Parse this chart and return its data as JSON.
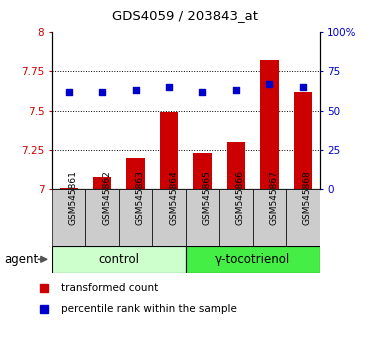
{
  "title": "GDS4059 / 203843_at",
  "categories": [
    "GSM545861",
    "GSM545862",
    "GSM545863",
    "GSM545864",
    "GSM545865",
    "GSM545866",
    "GSM545867",
    "GSM545868"
  ],
  "bar_values": [
    7.01,
    7.08,
    7.2,
    7.49,
    7.23,
    7.3,
    7.82,
    7.62
  ],
  "scatter_values": [
    62,
    62,
    63,
    65,
    62,
    63,
    67,
    65
  ],
  "ylim_left": [
    7.0,
    8.0
  ],
  "ylim_right": [
    0,
    100
  ],
  "yticks_left": [
    7.0,
    7.25,
    7.5,
    7.75,
    8.0
  ],
  "ytick_labels_left": [
    "7",
    "7.25",
    "7.5",
    "7.75",
    "8"
  ],
  "yticks_right": [
    0,
    25,
    50,
    75,
    100
  ],
  "ytick_labels_right": [
    "0",
    "25",
    "50",
    "75",
    "100%"
  ],
  "grid_values": [
    7.25,
    7.5,
    7.75
  ],
  "bar_color": "#cc0000",
  "scatter_color": "#0000cc",
  "bar_width": 0.55,
  "control_label": "control",
  "treatment_label": "γ-tocotrienol",
  "agent_label": "agent",
  "legend_bar_label": "transformed count",
  "legend_scatter_label": "percentile rank within the sample",
  "control_color": "#ccffcc",
  "treatment_color": "#44ee44",
  "bg_color": "#cccccc",
  "plot_bg_color": "#ffffff",
  "tick_label_color_left": "#cc0000",
  "tick_label_color_right": "#0000cc",
  "n_control": 4,
  "n_treatment": 4
}
